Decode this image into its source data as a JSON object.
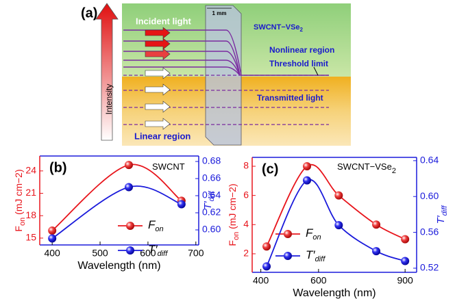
{
  "diagram": {
    "label": "(a)",
    "axis": "Intensity",
    "thickness": "1 mm",
    "incident": "Incident light",
    "sample": "SWCNT−VSe",
    "sample_sub": "2",
    "nonlinear": "Nonlinear region",
    "threshold": "Threshold limit",
    "transmitted": "Transmitted light",
    "linear": "Linear region"
  },
  "chart_data": [
    {
      "type": "line",
      "panel_label": "(b)",
      "annotation": "SWCNT",
      "annotation_sub": null,
      "xlabel": "Wavelength (nm)",
      "ylabel": "F",
      "ylabel_sub": "on",
      "ylabel_unit": " (mJ cm−2)",
      "y2label": "T′",
      "y2label_sub": "diff",
      "x": [
        400,
        560,
        670
      ],
      "xlim": [
        374,
        706
      ],
      "xticks": [
        400,
        500,
        600,
        700
      ],
      "ylim": [
        14.08,
        26.0
      ],
      "yticks": [
        15,
        18,
        21,
        24
      ],
      "y2lim": [
        0.5824,
        0.6864
      ],
      "y2ticks": [
        {
          "value": 0.6,
          "label": "0.60"
        },
        0.62,
        0.64,
        0.66,
        0.68
      ],
      "series": [
        {
          "name": "F",
          "name_sub": "on",
          "color": "#e8141b",
          "values": [
            16,
            24.8,
            20
          ]
        },
        {
          "name": "T′",
          "name_sub": "diff",
          "color": "#1a1adb",
          "axis": "y2",
          "values": [
            0.59,
            0.65,
            0.63
          ]
        }
      ]
    },
    {
      "type": "line",
      "panel_label": "(c)",
      "annotation": "SWCNT−VSe",
      "annotation_sub": "2",
      "xlabel": "Wavelength (nm)",
      "ylabel": "F",
      "ylabel_sub": "on",
      "ylabel_unit": " (mJ cm−2)",
      "y2label": "T′",
      "y2label_sub": "diff",
      "x": [
        420,
        560,
        670,
        800,
        900
      ],
      "xlim": [
        370,
        940
      ],
      "xticks": [
        400,
        600,
        900
      ],
      "ylim": [
        0.73,
        8.61
      ],
      "yticks": [
        2,
        4,
        6,
        8
      ],
      "y2lim": [
        0.5154,
        0.6437
      ],
      "y2ticks": [
        0.52,
        0.56,
        {
          "value": 0.6,
          "label": "0.60"
        },
        0.64
      ],
      "series": [
        {
          "name": "F",
          "name_sub": "on",
          "color": "#e8141b",
          "values": [
            2.5,
            8,
            6,
            4,
            3
          ]
        },
        {
          "name": "T′",
          "name_sub": "diff",
          "color": "#1a1adb",
          "axis": "y2",
          "values": [
            0.522,
            0.618,
            0.568,
            0.539,
            0.528
          ]
        }
      ]
    }
  ]
}
